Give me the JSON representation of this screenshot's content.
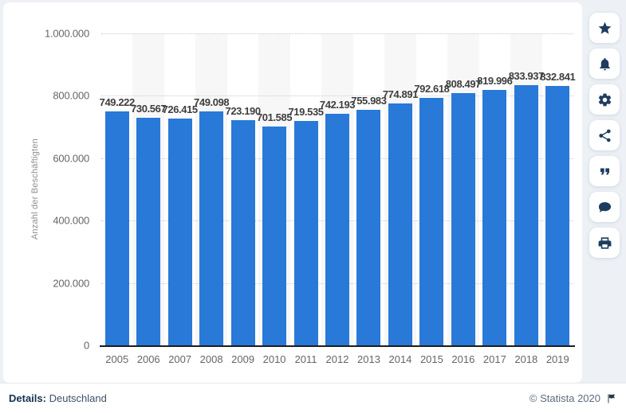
{
  "chart_data": {
    "type": "bar",
    "title": "",
    "xlabel": "",
    "ylabel": "Anzahl der Beschäftigten",
    "ylim": [
      0,
      1000000
    ],
    "yticks": [
      "1.000.000",
      "800.000",
      "600.000",
      "400.000",
      "200.000",
      "0"
    ],
    "grid": "horizontal-dotted",
    "legend": "none",
    "categories": [
      "2005",
      "2006",
      "2007",
      "2008",
      "2009",
      "2010",
      "2011",
      "2012",
      "2013",
      "2014",
      "2015",
      "2016",
      "2017",
      "2018",
      "2019"
    ],
    "values": [
      749222,
      730567,
      726415,
      749098,
      723190,
      701585,
      719535,
      742193,
      755983,
      774891,
      792618,
      808497,
      819996,
      833937,
      832841
    ],
    "value_labels": [
      "749.222",
      "730.567",
      "726.415",
      "749.098",
      "723.190",
      "701.585",
      "719.535",
      "742.193",
      "755.983",
      "774.891",
      "792.618",
      "808.497",
      "819.996",
      "833.937",
      "832.841"
    ],
    "bar_color": "#2979d8",
    "band_alt_color": "#f7f7f7"
  },
  "toolbar": {
    "icons": [
      "star-icon",
      "bell-icon",
      "gear-icon",
      "share-icon",
      "quote-icon",
      "comment-icon",
      "print-icon"
    ]
  },
  "footer": {
    "details_label": "Details:",
    "details_value": "Deutschland",
    "copyright": "© Statista 2020"
  }
}
